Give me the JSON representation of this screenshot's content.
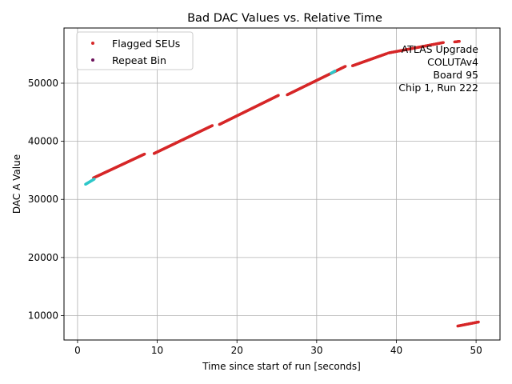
{
  "chart_data": {
    "type": "scatter",
    "title": "Bad DAC Values vs. Relative Time",
    "xlabel": "Time since start of run [seconds]",
    "ylabel": "DAC A Value",
    "xlim": [
      -1.7,
      53
    ],
    "ylim": [
      5800,
      59500
    ],
    "x_ticks": [
      0,
      10,
      20,
      30,
      40,
      50
    ],
    "y_ticks": [
      10000,
      20000,
      30000,
      40000,
      50000
    ],
    "grid": true,
    "legend": {
      "placement": "top-left",
      "entries": [
        "Flagged SEUs",
        "Repeat Bin"
      ]
    },
    "annotation": [
      "ATLAS Upgrade",
      "COLUTAv4",
      "Board 95",
      "Chip 1, Run 222"
    ],
    "colors": {
      "flagged": "#d62728",
      "repeat": "#6a0f5a",
      "overlay": "#2ec7c9",
      "grid": "#b0b0b0"
    },
    "series": [
      {
        "name": "Flagged SEUs",
        "color": "#d62728",
        "segments": [
          {
            "x0": 2.0,
            "y0": 33700,
            "x1": 8.4,
            "y1": 37800
          },
          {
            "x0": 9.6,
            "y0": 37900,
            "x1": 16.9,
            "y1": 42700
          },
          {
            "x0": 17.8,
            "y0": 42900,
            "x1": 25.2,
            "y1": 47900
          },
          {
            "x0": 26.3,
            "y0": 48000,
            "x1": 33.6,
            "y1": 52900
          },
          {
            "x0": 34.5,
            "y0": 53000,
            "x1": 38.8,
            "y1": 55100
          },
          {
            "x0": 39.0,
            "y0": 55200,
            "x1": 45.9,
            "y1": 57000
          },
          {
            "x0": 47.3,
            "y0": 57100,
            "x1": 47.9,
            "y1": 57200
          },
          {
            "x0": 47.7,
            "y0": 8200,
            "x1": 50.3,
            "y1": 8900
          }
        ]
      },
      {
        "name": "Repeat Bin",
        "color": "#2ec7c9",
        "segments": [
          {
            "x0": 1.0,
            "y0": 32600,
            "x1": 2.1,
            "y1": 33500
          },
          {
            "x0": 31.8,
            "y0": 51700,
            "x1": 32.3,
            "y1": 52100
          }
        ]
      }
    ]
  }
}
